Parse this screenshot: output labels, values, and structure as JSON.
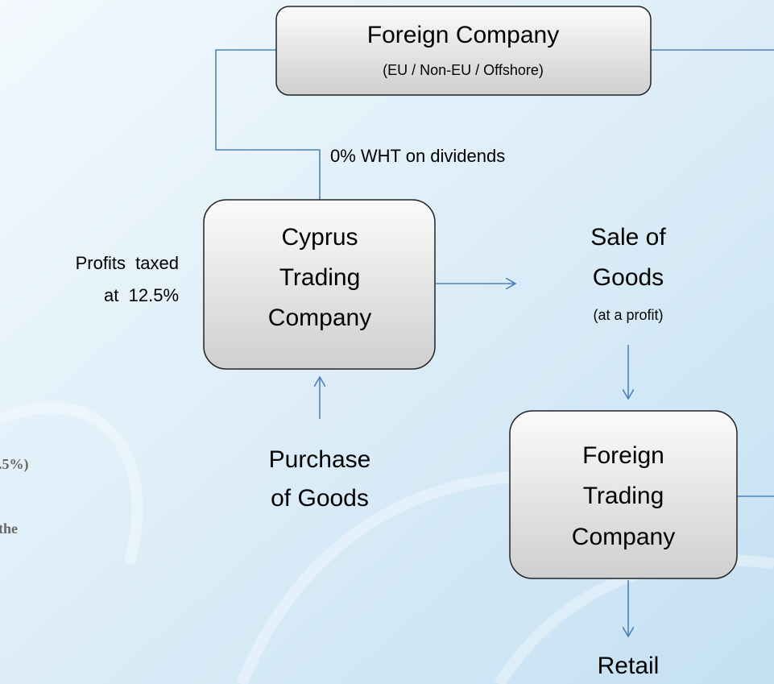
{
  "nodes": [
    {
      "label": "Foreign Company",
      "sublabel": "(EU / Non-EU / Offshore)"
    },
    {
      "label": [
        "Cyprus",
        "Trading",
        "Company"
      ]
    },
    {
      "label": [
        "Foreign",
        "Trading",
        "Company"
      ]
    }
  ],
  "notes": {
    "dividends": "0% WHT on dividends",
    "profits": [
      "Profits  taxed",
      "at  12.5%"
    ],
    "sale": [
      "Sale of",
      "Goods",
      "(at a profit)"
    ],
    "purchase": [
      "Purchase",
      "of Goods"
    ],
    "retail": "Retail"
  },
  "fragments": [
    ".5%)",
    "the"
  ]
}
